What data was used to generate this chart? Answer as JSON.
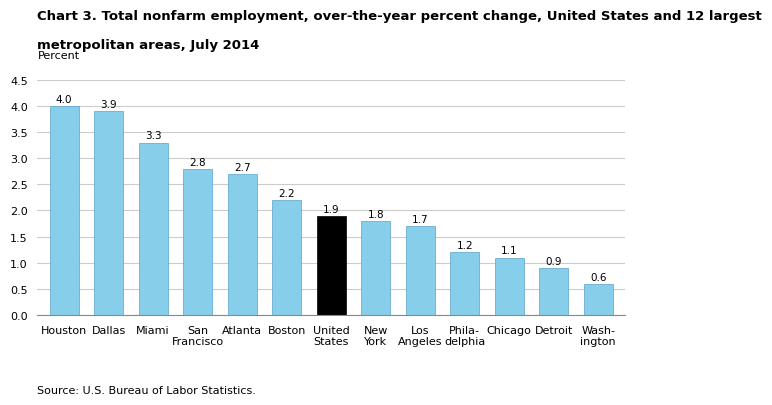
{
  "title_line1": "Chart 3. Total nonfarm employment, over-the-year percent change, United States and 12 largest",
  "title_line2": "metropolitan areas, July 2014",
  "ylabel": "Percent",
  "source": "Source: U.S. Bureau of Labor Statistics.",
  "categories": [
    "Houston",
    "Dallas",
    "Miami",
    "San\nFrancisco",
    "Atlanta",
    "Boston",
    "United\nStates",
    "New\nYork",
    "Los\nAngeles",
    "Phila-\ndelphia",
    "Chicago",
    "Detroit",
    "Wash-\nington"
  ],
  "values": [
    4.0,
    3.9,
    3.3,
    2.8,
    2.7,
    2.2,
    1.9,
    1.8,
    1.7,
    1.2,
    1.1,
    0.9,
    0.6
  ],
  "bar_colors": [
    "#87CEEB",
    "#87CEEB",
    "#87CEEB",
    "#87CEEB",
    "#87CEEB",
    "#87CEEB",
    "#000000",
    "#87CEEB",
    "#87CEEB",
    "#87CEEB",
    "#87CEEB",
    "#87CEEB",
    "#87CEEB"
  ],
  "ylim": [
    0,
    4.5
  ],
  "yticks": [
    0.0,
    0.5,
    1.0,
    1.5,
    2.0,
    2.5,
    3.0,
    3.5,
    4.0,
    4.5
  ],
  "title_fontsize": 9.5,
  "label_fontsize": 8,
  "tick_fontsize": 8,
  "value_fontsize": 7.5,
  "bar_edge_color": "#5BA3C9",
  "grid_color": "#cccccc",
  "background_color": "#ffffff"
}
